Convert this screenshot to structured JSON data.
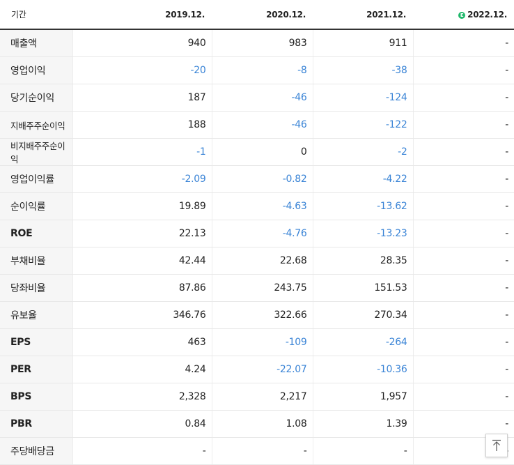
{
  "header": {
    "label": "기간",
    "periods": [
      "2019.12.",
      "2020.12.",
      "2021.12.",
      "2022.12."
    ],
    "estimate_badge": "E"
  },
  "rows": [
    {
      "label": "매출액",
      "values": [
        "940",
        "983",
        "911",
        "-"
      ]
    },
    {
      "label": "영업이익",
      "values": [
        "-20",
        "-8",
        "-38",
        "-"
      ]
    },
    {
      "label": "당기순이익",
      "values": [
        "187",
        "-46",
        "-124",
        "-"
      ]
    },
    {
      "label": "지배주주순이익",
      "values": [
        "188",
        "-46",
        "-122",
        "-"
      ]
    },
    {
      "label": "비지배주주순이익",
      "values": [
        "-1",
        "0",
        "-2",
        "-"
      ]
    },
    {
      "label": "영업이익률",
      "values": [
        "-2.09",
        "-0.82",
        "-4.22",
        "-"
      ]
    },
    {
      "label": "순이익률",
      "values": [
        "19.89",
        "-4.63",
        "-13.62",
        "-"
      ]
    },
    {
      "label": "ROE",
      "values": [
        "22.13",
        "-4.76",
        "-13.23",
        "-"
      ]
    },
    {
      "label": "부채비율",
      "values": [
        "42.44",
        "22.68",
        "28.35",
        "-"
      ]
    },
    {
      "label": "당좌비율",
      "values": [
        "87.86",
        "243.75",
        "151.53",
        "-"
      ]
    },
    {
      "label": "유보율",
      "values": [
        "346.76",
        "322.66",
        "270.34",
        "-"
      ]
    },
    {
      "label": "EPS",
      "values": [
        "463",
        "-109",
        "-264",
        "-"
      ]
    },
    {
      "label": "PER",
      "values": [
        "4.24",
        "-22.07",
        "-10.36",
        "-"
      ]
    },
    {
      "label": "BPS",
      "values": [
        "2,328",
        "2,217",
        "1,957",
        "-"
      ]
    },
    {
      "label": "PBR",
      "values": [
        "0.84",
        "1.08",
        "1.39",
        "-"
      ]
    },
    {
      "label": "주당배당금",
      "values": [
        "-",
        "-",
        "-",
        "-"
      ]
    }
  ],
  "colors": {
    "negative": "#3a84d6",
    "estimate": "#1fb86b"
  },
  "scroll_top_icon": "arrow-up-to-top-icon"
}
